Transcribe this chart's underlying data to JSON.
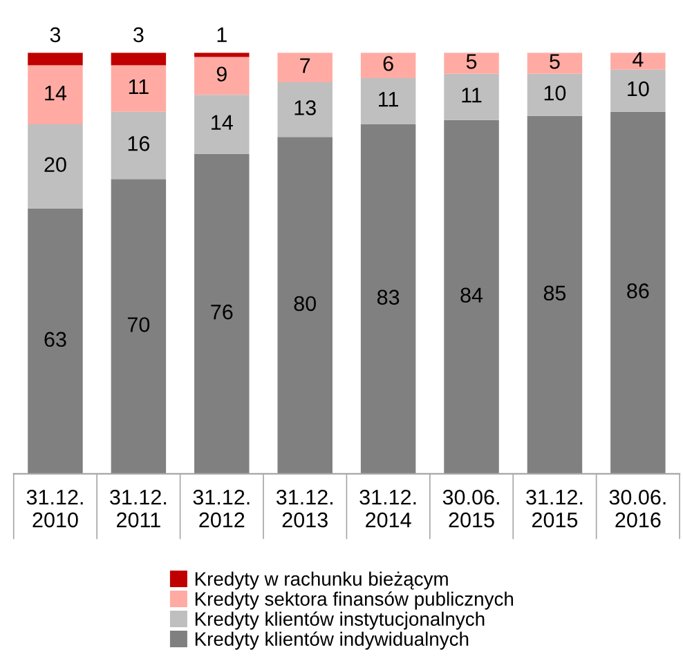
{
  "chart_data": {
    "type": "bar",
    "stacked": true,
    "data_labels": true,
    "legend": "bottom",
    "categories": [
      "31.12.\n2010",
      "31.12.\n2011",
      "31.12.\n2012",
      "31.12.\n2013",
      "31.12.\n2014",
      "30.06.\n2015",
      "31.12.\n2015",
      "30.06.\n2016"
    ],
    "series": [
      {
        "name": "Kredyty klientów indywidualnych",
        "color": "#808080",
        "values": [
          63,
          70,
          76,
          80,
          83,
          84,
          85,
          86
        ]
      },
      {
        "name": "Kredyty klientów instytucjonalnych",
        "color": "#bfbfbf",
        "values": [
          20,
          16,
          14,
          13,
          11,
          11,
          10,
          10
        ]
      },
      {
        "name": "Kredyty sektora finansów publicznych",
        "color": "#ffaba3",
        "values": [
          14,
          11,
          9,
          7,
          6,
          5,
          5,
          4
        ]
      },
      {
        "name": "Kredyty w rachunku bieżącym",
        "color": "#c00000",
        "values": [
          3,
          3,
          1,
          null,
          null,
          null,
          null,
          null
        ]
      }
    ]
  }
}
